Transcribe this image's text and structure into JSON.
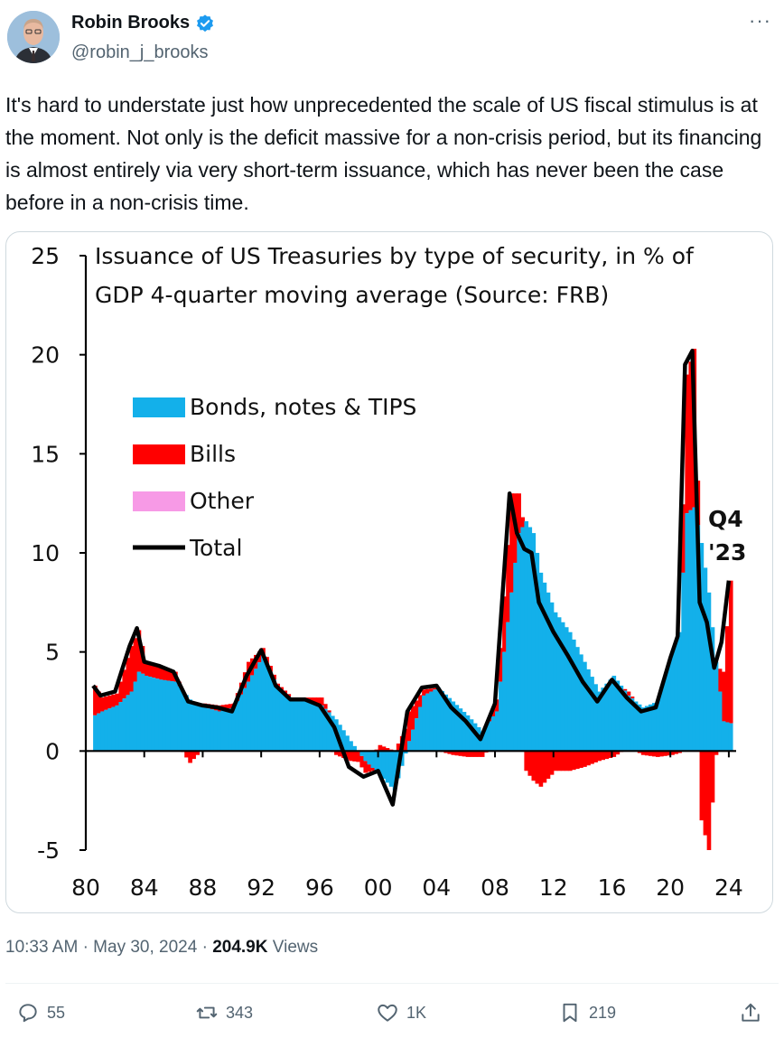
{
  "author": {
    "name": "Robin Brooks",
    "handle": "@robin_j_brooks",
    "verified_color": "#1d9bf0"
  },
  "tweet": {
    "text": "It's hard to understate just how unprecedented the scale of US fiscal stimulus is at the moment. Not only is the deficit massive for a non-crisis period, but its financing is almost entirely via very short-term issuance, which has never been the case before in a non-crisis time.",
    "time": "10:33 AM",
    "date": "May 30, 2024",
    "views_count": "204.9K",
    "views_label": "Views",
    "separator": "·"
  },
  "actions": {
    "replies": "55",
    "reposts": "343",
    "likes": "1K",
    "bookmarks": "219"
  },
  "chart_data": {
    "type": "area",
    "title_line1": "Issuance of US Treasuries by type of security, in % of",
    "title_line2": "GDP 4-quarter moving average (Source: FRB)",
    "annotation_line1": "Q4",
    "annotation_line2": "'23",
    "ylim": [
      -5,
      25
    ],
    "yticks": [
      25,
      20,
      15,
      10,
      5,
      0,
      -5
    ],
    "xlim": [
      1980,
      2024.5
    ],
    "xtick_labels": [
      "80",
      "84",
      "88",
      "92",
      "96",
      "00",
      "04",
      "08",
      "12",
      "16",
      "20",
      "24"
    ],
    "xtick_years": [
      1980,
      1984,
      1988,
      1992,
      1996,
      2000,
      2004,
      2008,
      2012,
      2016,
      2020,
      2024
    ],
    "colors": {
      "bonds": "#13b0ea",
      "bills": "#ff0000",
      "other": "#f79ae6",
      "total": "#000000"
    },
    "legend": [
      {
        "label": "Bonds, notes & TIPS",
        "color": "#13b0ea"
      },
      {
        "label": "Bills",
        "color": "#ff0000"
      },
      {
        "label": "Other",
        "color": "#f79ae6"
      },
      {
        "label": "Total",
        "color": "#000000"
      }
    ],
    "series": [
      {
        "name": "Bonds, notes & TIPS",
        "x": [
          1980.5,
          1981,
          1982,
          1983,
          1983.5,
          1984,
          1985,
          1986,
          1987,
          1988,
          1989,
          1990,
          1991,
          1992,
          1993,
          1994,
          1995,
          1996,
          1997,
          1998,
          1999,
          2000,
          2001,
          2002,
          2003,
          2004,
          2005,
          2006,
          2007,
          2008,
          2009,
          2009.5,
          2010,
          2010.5,
          2011,
          2012,
          2013,
          2014,
          2015,
          2016,
          2017,
          2018,
          2019,
          2020,
          2020.5,
          2021,
          2021.5,
          2022,
          2022.5,
          2023,
          2023.5,
          2024
        ],
        "y": [
          1.8,
          2.0,
          2.3,
          3.0,
          4.0,
          3.8,
          3.6,
          3.5,
          2.6,
          2.2,
          2.0,
          2.2,
          3.5,
          4.8,
          3.2,
          2.6,
          2.5,
          2.3,
          1.6,
          0.5,
          -0.5,
          -1.2,
          -2.0,
          0.5,
          2.8,
          3.2,
          2.5,
          1.8,
          1.0,
          2.0,
          8.0,
          11.0,
          11.6,
          11.0,
          9.0,
          7.0,
          6.0,
          4.5,
          3.0,
          3.8,
          2.8,
          2.2,
          2.5,
          5.0,
          6.0,
          12.0,
          12.3,
          10.5,
          8.0,
          4.5,
          1.5,
          1.4
        ]
      },
      {
        "name": "Bills",
        "x": [
          1980.5,
          1981,
          1982,
          1983,
          1983.5,
          1984,
          1985,
          1986,
          1987,
          1988,
          1989,
          1990,
          1991,
          1992,
          1993,
          1994,
          1995,
          1996,
          1997,
          1998,
          1999,
          2000,
          2001,
          2002,
          2003,
          2004,
          2005,
          2006,
          2007,
          2008,
          2009,
          2009.5,
          2010,
          2010.5,
          2011,
          2012,
          2013,
          2014,
          2015,
          2016,
          2017,
          2018,
          2019,
          2020,
          2020.5,
          2021,
          2021.5,
          2022,
          2022.5,
          2023,
          2023.5,
          2024
        ],
        "y": [
          1.5,
          0.7,
          0.6,
          2.3,
          2.1,
          0.7,
          0.6,
          0.5,
          -0.6,
          0.2,
          0.3,
          0.2,
          1.0,
          0.4,
          0.2,
          0.1,
          0.2,
          0.4,
          -0.2,
          -0.5,
          -0.6,
          0.3,
          0.0,
          1.5,
          0.3,
          0.0,
          -0.2,
          -0.3,
          -0.3,
          0.6,
          5.0,
          2.0,
          -1.0,
          -1.5,
          -1.8,
          -1.0,
          -1.0,
          -0.8,
          -0.5,
          -0.3,
          0.2,
          -0.2,
          -0.3,
          -0.2,
          -0.1,
          7.0,
          8.0,
          -3.5,
          -5.0,
          -0.2,
          2.5,
          7.2
        ]
      },
      {
        "name": "Total",
        "x": [
          1980.5,
          1981,
          1982,
          1983,
          1983.5,
          1984,
          1985,
          1986,
          1987,
          1988,
          1989,
          1990,
          1991,
          1992,
          1993,
          1994,
          1995,
          1996,
          1997,
          1998,
          1999,
          2000,
          2001,
          2002,
          2003,
          2004,
          2005,
          2006,
          2007,
          2008,
          2009,
          2009.5,
          2010,
          2010.5,
          2011,
          2012,
          2013,
          2014,
          2015,
          2016,
          2017,
          2018,
          2019,
          2020,
          2020.5,
          2021,
          2021.5,
          2022,
          2022.5,
          2023,
          2023.5,
          2024
        ],
        "y": [
          3.3,
          2.8,
          3.0,
          5.3,
          6.2,
          4.5,
          4.3,
          4.0,
          2.5,
          2.3,
          2.2,
          2.0,
          3.8,
          5.1,
          3.3,
          2.6,
          2.6,
          2.3,
          1.2,
          -0.8,
          -1.3,
          -1.0,
          -2.7,
          2.0,
          3.2,
          3.3,
          2.2,
          1.5,
          0.6,
          2.4,
          13.0,
          11.0,
          10.2,
          10.0,
          7.5,
          6.0,
          4.8,
          3.5,
          2.5,
          3.6,
          2.7,
          2.0,
          2.2,
          4.7,
          5.8,
          19.5,
          20.2,
          7.5,
          6.5,
          4.2,
          5.5,
          8.6
        ]
      }
    ]
  }
}
